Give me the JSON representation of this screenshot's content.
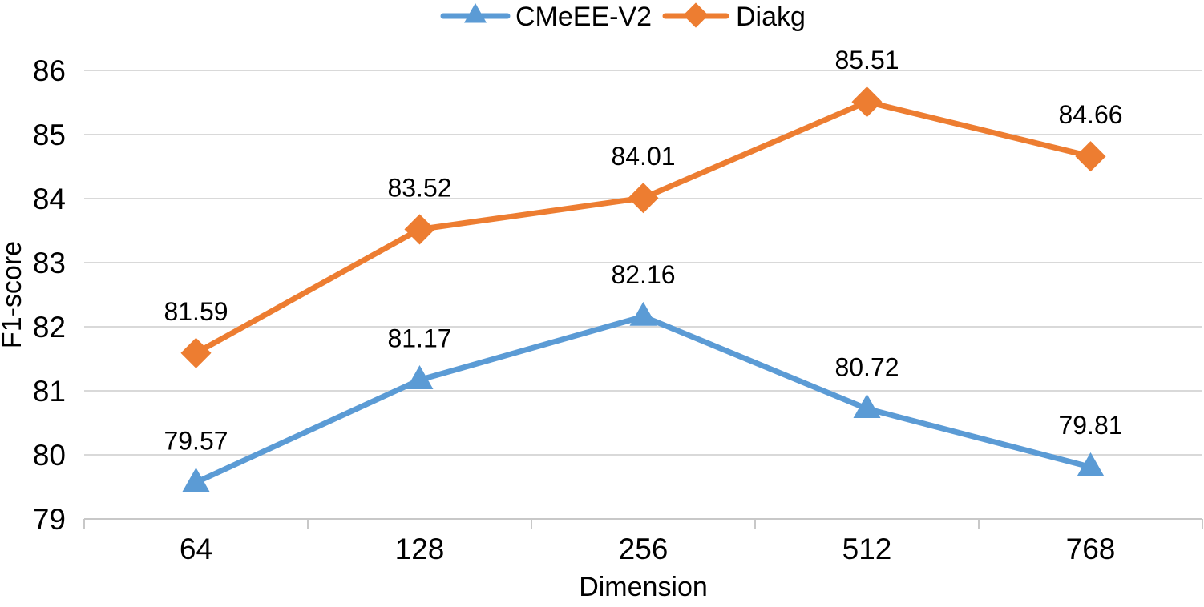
{
  "figure": {
    "background": "#ffffff"
  },
  "chart_data": {
    "type": "line",
    "title": "",
    "xlabel": "Dimension",
    "ylabel": "F1-score",
    "categories": [
      "64",
      "128",
      "256",
      "512",
      "768"
    ],
    "series": [
      {
        "name": "CMeEE-V2",
        "color": "#5B9BD5",
        "marker": "triangle",
        "values": [
          79.57,
          81.17,
          82.16,
          80.72,
          79.81
        ],
        "labels": [
          "79.57",
          "81.17",
          "82.16",
          "80.72",
          "79.81"
        ]
      },
      {
        "name": "Diakg",
        "color": "#ED7D31",
        "marker": "diamond",
        "values": [
          81.59,
          83.52,
          84.01,
          85.51,
          84.66
        ],
        "labels": [
          "81.59",
          "83.52",
          "84.01",
          "85.51",
          "84.66"
        ]
      }
    ],
    "ylim": [
      79,
      86
    ],
    "ytick_step": 1,
    "yticks": [
      "79",
      "80",
      "81",
      "82",
      "83",
      "84",
      "85",
      "86"
    ],
    "grid": true,
    "legend_position": "top-center",
    "data_labels_shown": true,
    "colors": {
      "gridline": "#D9D9D9",
      "axis_line": "#C8C8C8",
      "text": "#000000"
    }
  }
}
